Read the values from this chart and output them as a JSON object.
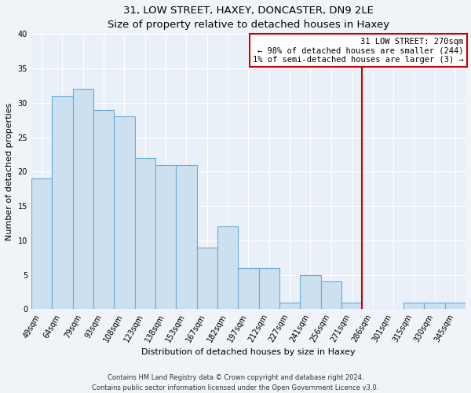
{
  "title": "31, LOW STREET, HAXEY, DONCASTER, DN9 2LE",
  "subtitle": "Size of property relative to detached houses in Haxey",
  "xlabel": "Distribution of detached houses by size in Haxey",
  "ylabel": "Number of detached properties",
  "bin_labels": [
    "49sqm",
    "64sqm",
    "79sqm",
    "93sqm",
    "108sqm",
    "123sqm",
    "138sqm",
    "153sqm",
    "167sqm",
    "182sqm",
    "197sqm",
    "212sqm",
    "227sqm",
    "241sqm",
    "256sqm",
    "271sqm",
    "286sqm",
    "301sqm",
    "315sqm",
    "330sqm",
    "345sqm"
  ],
  "bar_values": [
    19,
    31,
    32,
    29,
    28,
    22,
    21,
    21,
    9,
    12,
    6,
    6,
    1,
    5,
    4,
    1,
    0,
    0,
    1,
    1,
    1
  ],
  "bar_color": "#cce0f0",
  "bar_edge_color": "#6aaad4",
  "vline_color": "#cc0000",
  "ylim": [
    0,
    40
  ],
  "yticks": [
    0,
    5,
    10,
    15,
    20,
    25,
    30,
    35,
    40
  ],
  "annotation_title": "31 LOW STREET: 270sqm",
  "annotation_line1": "← 98% of detached houses are smaller (244)",
  "annotation_line2": "1% of semi-detached houses are larger (3) →",
  "annotation_box_color": "#ffffff",
  "annotation_box_edge_color": "#cc0000",
  "footnote1": "Contains HM Land Registry data © Crown copyright and database right 2024.",
  "footnote2": "Contains public sector information licensed under the Open Government Licence v3.0.",
  "background_color": "#f0f4f8",
  "plot_bg_color": "#eaf0f8",
  "grid_color": "#ffffff",
  "title_fontsize": 9.5,
  "subtitle_fontsize": 8.5,
  "axis_label_fontsize": 8,
  "tick_fontsize": 7,
  "annotation_fontsize": 7.5,
  "footnote_fontsize": 6
}
